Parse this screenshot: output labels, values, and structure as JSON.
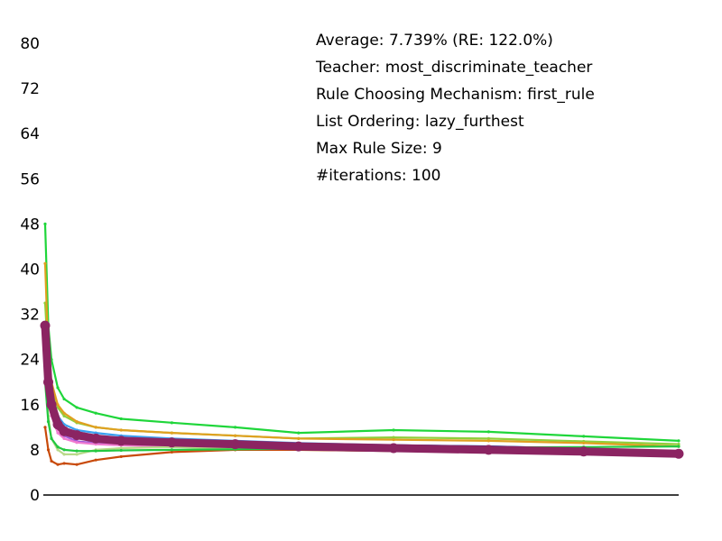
{
  "chart_data": {
    "type": "line",
    "title": "",
    "xlabel": "",
    "ylabel": "",
    "ylim": [
      0,
      80
    ],
    "y_ticks": [
      0,
      8,
      16,
      24,
      32,
      40,
      48,
      56,
      64,
      72,
      80
    ],
    "x_tick_labels": [],
    "grid": false,
    "legend": "none",
    "x_domain": [
      0,
      100
    ],
    "annotations": [
      "Average: 7.739% (RE: 122.0%)",
      "Teacher: most_discriminate_teacher",
      "Rule Choosing Mechanism: first_rule",
      "List Ordering: lazy_furthest",
      "Max Rule Size: 9",
      "#iterations: 100"
    ],
    "series": [
      {
        "color": "#1fd63a",
        "x": [
          0,
          0.5,
          1,
          2,
          3,
          5,
          8,
          12,
          20,
          30,
          40,
          55,
          70,
          85,
          100
        ],
        "values": [
          48,
          30,
          24,
          19,
          17,
          15.5,
          14.5,
          13.5,
          12.8,
          12,
          11,
          11.5,
          11.2,
          10.4,
          9.6
        ]
      },
      {
        "color": "#8fcf3c",
        "x": [
          0,
          0.5,
          1,
          2,
          3,
          5,
          8,
          12,
          20,
          30,
          40,
          55,
          70,
          85,
          100
        ],
        "values": [
          34,
          24,
          19,
          15.5,
          14,
          12.8,
          12,
          11.5,
          11,
          10.5,
          10,
          10.2,
          10,
          9.5,
          9
        ]
      },
      {
        "color": "#e0a020",
        "x": [
          0,
          0.5,
          1,
          2,
          3,
          5,
          8,
          12,
          20,
          30,
          40,
          55,
          70,
          85,
          100
        ],
        "values": [
          41,
          25,
          20,
          16,
          14.5,
          13,
          12,
          11.5,
          11,
          10.5,
          10,
          9.8,
          9.6,
          9.2,
          8.6
        ]
      },
      {
        "color": "#3aa0f0",
        "x": [
          0,
          0.5,
          1,
          2,
          3,
          5,
          8,
          12,
          20,
          30,
          40,
          55,
          70,
          85,
          100
        ],
        "values": [
          28,
          21,
          17,
          14,
          12.5,
          11.5,
          11,
          10.5,
          10,
          9.6,
          9.2,
          8.8,
          8.6,
          8.2,
          7.8
        ]
      },
      {
        "color": "#1f3a93",
        "x": [
          0,
          0.5,
          1,
          2,
          3,
          5,
          8,
          12,
          20,
          30,
          40,
          55,
          70,
          85,
          100
        ],
        "values": [
          30,
          20,
          15,
          12,
          11,
          10.5,
          10,
          9.8,
          9.6,
          9.4,
          9,
          8.8,
          8.6,
          8.2,
          7.8
        ]
      },
      {
        "color": "#a35ad8",
        "x": [
          0,
          0.5,
          1,
          2,
          3,
          5,
          8,
          12,
          20,
          30,
          40,
          55,
          70,
          85,
          100
        ],
        "values": [
          26,
          19,
          15,
          12,
          10.5,
          9.5,
          9.2,
          9,
          8.8,
          8.6,
          8.4,
          8.2,
          8,
          7.8,
          7.4
        ]
      },
      {
        "color": "#f07ad0",
        "x": [
          0,
          0.5,
          1,
          2,
          3,
          5,
          8,
          12,
          20,
          30,
          40,
          55,
          70,
          85,
          100
        ],
        "values": [
          24,
          17,
          14,
          11,
          10,
          9.3,
          9,
          8.8,
          8.6,
          8.4,
          8.2,
          8,
          7.8,
          7.5,
          7.2
        ]
      },
      {
        "color": "#b9d98a",
        "x": [
          0,
          0.5,
          1,
          2,
          3,
          5,
          8,
          12,
          20,
          30,
          40,
          55,
          70,
          85,
          100
        ],
        "values": [
          22,
          14,
          10,
          8,
          7.2,
          7.2,
          8,
          8.3,
          8.5,
          8.2,
          8,
          7.8,
          7.6,
          7.3,
          7
        ]
      },
      {
        "color": "#c84a0a",
        "x": [
          0,
          0.5,
          1,
          2,
          3,
          5,
          8,
          12,
          20,
          30,
          40,
          55,
          70,
          85,
          100
        ],
        "values": [
          12,
          8,
          6,
          5.4,
          5.6,
          5.4,
          6.2,
          6.8,
          7.6,
          8,
          8,
          7.8,
          7.6,
          7.3,
          7
        ]
      },
      {
        "color": "#22c840",
        "x": [
          0,
          0.5,
          1,
          2,
          3,
          5,
          8,
          12,
          20,
          30,
          40,
          55,
          70,
          85,
          100
        ],
        "values": [
          20,
          13,
          10,
          8.5,
          8,
          7.8,
          7.8,
          7.9,
          8,
          8.1,
          8.2,
          8.3,
          8.4,
          8.5,
          8.6
        ]
      },
      {
        "color": "#8b2462",
        "x": [
          0,
          0.5,
          1,
          2,
          3,
          5,
          8,
          12,
          20,
          30,
          40,
          55,
          70,
          85,
          100
        ],
        "values": [
          30,
          20,
          16,
          12.5,
          11.3,
          10.6,
          10,
          9.6,
          9.3,
          9,
          8.6,
          8.3,
          8,
          7.7,
          7.3
        ]
      }
    ]
  }
}
